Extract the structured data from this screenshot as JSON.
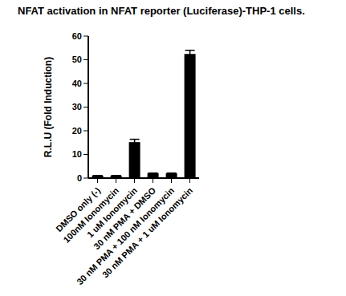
{
  "chart_data": {
    "type": "bar",
    "title": "NFAT activation in NFAT reporter (Luciferase)-THP-1 cells.",
    "y_label": "R.L.U (Fold Induction)",
    "categories": [
      "DMSO only (-)",
      "100nM Ionomycin",
      "1 uM Ionomycin",
      "30 nM PMA + DMSO",
      "30 nM PMA + 100 nM Ionomycin",
      "30 nM PMA + 1 uM Ionomycin"
    ],
    "values": [
      1,
      1,
      15.2,
      2,
      2,
      52.5
    ],
    "errors": [
      0.1,
      0.1,
      1.2,
      0.1,
      0.1,
      1.5
    ],
    "color": "#000000",
    "ylim": [
      0,
      60
    ],
    "yticks": [
      0,
      10,
      20,
      30,
      40,
      50,
      60
    ],
    "grid": false
  }
}
